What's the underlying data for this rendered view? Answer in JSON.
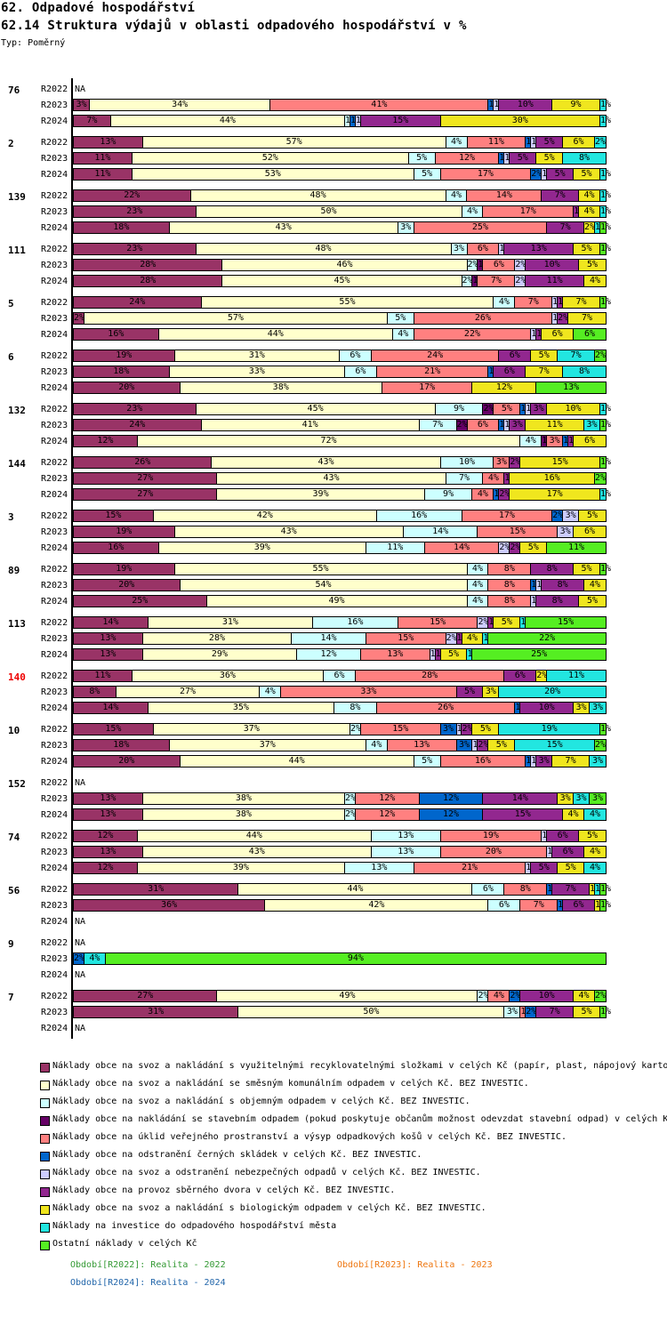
{
  "header": {
    "title": "62. Odpadové hospodářství",
    "subtitle": "62.14 Struktura výdajů v oblasti odpadového hospodářství v %",
    "type_label": "Typ: Poměrný"
  },
  "chart_data": {
    "type": "bar",
    "orientation": "horizontal-stacked-100",
    "title": "62.14 Struktura výdajů v oblasti odpadového hospodářství v %",
    "xlim": [
      0,
      100
    ],
    "series_names": [
      "Náklady obce na svoz a nakládání s využitelnými recyklovatelnými složkami v celých Kč (papír, plast, nápojový karto",
      "Náklady obce na svoz a nakládání se směsným komunálním odpadem v celých Kč.  BEZ INVESTIC.",
      "Náklady obce na svoz a nakládání s objemným odpadem v celých Kč.  BEZ INVESTIC.",
      "Náklady obce na nakládání se stavebním odpadem (pokud poskytuje občanům možnost odevzdat stavební odpad) v celých K",
      "Náklady obce na úklid veřejného prostranství a výsyp odpadkových košů v celých Kč.  BEZ INVESTIC.",
      "Náklady obce na odstranění černých skládek v celých Kč.  BEZ INVESTIC.",
      "Náklady obce na svoz a odstranění nebezpečných odpadů v celých Kč.  BEZ INVESTIC.",
      "Náklady obce na provoz sběrného dvora v celých Kč.  BEZ INVESTIC.",
      "Náklady obce na svoz a nakládání s biologickým odpadem v celých Kč.  BEZ INVESTIC.",
      "Náklady na investice do odpadového hospodářství města",
      "Ostatní náklady v celých Kč"
    ],
    "series_colors": [
      "#993366",
      "#ffffcc",
      "#ccffff",
      "#660066",
      "#ff8080",
      "#0066cc",
      "#ccccff",
      "#92278f",
      "#f0e61e",
      "#22e6e0",
      "#55ee22"
    ],
    "groups": [
      {
        "id": "76",
        "highlight": false,
        "rows": [
          {
            "period": "R2022",
            "values": null
          },
          {
            "period": "R2023",
            "values": [
              3,
              34,
              0,
              0,
              41,
              1,
              1,
              10,
              9,
              1,
              0
            ]
          },
          {
            "period": "R2024",
            "values": [
              7,
              44,
              1,
              0,
              0,
              1,
              1,
              15,
              30,
              1,
              0
            ]
          }
        ]
      },
      {
        "id": "2",
        "highlight": false,
        "rows": [
          {
            "period": "R2022",
            "values": [
              13,
              57,
              4,
              0,
              11,
              1,
              1,
              5,
              6,
              2,
              0
            ]
          },
          {
            "period": "R2023",
            "values": [
              11,
              52,
              5,
              0,
              12,
              1,
              1,
              5,
              5,
              8,
              0
            ]
          },
          {
            "period": "R2024",
            "values": [
              11,
              53,
              5,
              0,
              17,
              2,
              1,
              5,
              5,
              1,
              0
            ]
          }
        ]
      },
      {
        "id": "139",
        "highlight": false,
        "rows": [
          {
            "period": "R2022",
            "values": [
              22,
              48,
              4,
              0,
              14,
              0,
              0,
              7,
              4,
              1,
              0
            ]
          },
          {
            "period": "R2023",
            "values": [
              23,
              50,
              4,
              0,
              17,
              0,
              0,
              1,
              4,
              1,
              0
            ]
          },
          {
            "period": "R2024",
            "values": [
              18,
              43,
              3,
              0,
              25,
              0,
              0,
              7,
              2,
              1,
              1
            ]
          }
        ]
      },
      {
        "id": "111",
        "highlight": false,
        "rows": [
          {
            "period": "R2022",
            "values": [
              23,
              48,
              3,
              0,
              6,
              0,
              1,
              13,
              5,
              0,
              1
            ]
          },
          {
            "period": "R2023",
            "values": [
              28,
              46,
              2,
              1,
              6,
              0,
              2,
              10,
              5,
              0,
              0
            ]
          },
          {
            "period": "R2024",
            "values": [
              28,
              45,
              2,
              1,
              7,
              0,
              2,
              11,
              4,
              0,
              0
            ]
          }
        ]
      },
      {
        "id": "5",
        "highlight": false,
        "rows": [
          {
            "period": "R2022",
            "values": [
              24,
              55,
              4,
              0,
              7,
              0,
              1,
              1,
              7,
              0,
              1
            ]
          },
          {
            "period": "R2023",
            "values": [
              2,
              57,
              5,
              0,
              26,
              0,
              1,
              2,
              7,
              0,
              0
            ]
          },
          {
            "period": "R2024",
            "values": [
              16,
              44,
              4,
              0,
              22,
              0,
              1,
              1,
              6,
              0,
              6
            ]
          }
        ]
      },
      {
        "id": "6",
        "highlight": false,
        "rows": [
          {
            "period": "R2022",
            "values": [
              19,
              31,
              6,
              0,
              24,
              0,
              0,
              6,
              5,
              7,
              2
            ]
          },
          {
            "period": "R2023",
            "values": [
              18,
              33,
              6,
              0,
              21,
              1,
              0,
              6,
              7,
              8,
              0
            ]
          },
          {
            "period": "R2024",
            "values": [
              20,
              38,
              0,
              0,
              17,
              0,
              0,
              0,
              12,
              0,
              13
            ]
          }
        ]
      },
      {
        "id": "132",
        "highlight": false,
        "rows": [
          {
            "period": "R2022",
            "values": [
              23,
              45,
              9,
              2,
              5,
              1,
              1,
              3,
              10,
              1,
              0
            ]
          },
          {
            "period": "R2023",
            "values": [
              24,
              41,
              7,
              2,
              6,
              1,
              1,
              3,
              11,
              3,
              1
            ]
          },
          {
            "period": "R2024",
            "values": [
              12,
              72,
              4,
              1,
              3,
              1,
              0,
              1,
              6,
              0,
              0
            ]
          }
        ]
      },
      {
        "id": "144",
        "highlight": false,
        "rows": [
          {
            "period": "R2022",
            "values": [
              26,
              43,
              10,
              0,
              3,
              0,
              0,
              2,
              15,
              0,
              1
            ]
          },
          {
            "period": "R2023",
            "values": [
              27,
              43,
              7,
              0,
              4,
              0,
              0,
              1,
              16,
              0,
              2
            ]
          },
          {
            "period": "R2024",
            "values": [
              27,
              39,
              9,
              0,
              4,
              1,
              0,
              2,
              17,
              1,
              0
            ]
          }
        ]
      },
      {
        "id": "3",
        "highlight": false,
        "rows": [
          {
            "period": "R2022",
            "values": [
              15,
              42,
              16,
              0,
              17,
              2,
              3,
              0,
              5,
              0,
              0
            ]
          },
          {
            "period": "R2023",
            "values": [
              19,
              43,
              14,
              0,
              15,
              0,
              3,
              0,
              6,
              0,
              0
            ]
          },
          {
            "period": "R2024",
            "values": [
              16,
              39,
              11,
              0,
              14,
              0,
              2,
              2,
              5,
              0,
              11
            ]
          }
        ]
      },
      {
        "id": "89",
        "highlight": false,
        "rows": [
          {
            "period": "R2022",
            "values": [
              19,
              55,
              4,
              0,
              8,
              0,
              0,
              8,
              5,
              0,
              1
            ]
          },
          {
            "period": "R2023",
            "values": [
              20,
              54,
              4,
              0,
              8,
              1,
              1,
              8,
              4,
              0,
              0
            ]
          },
          {
            "period": "R2024",
            "values": [
              25,
              49,
              4,
              0,
              8,
              0,
              1,
              8,
              5,
              0,
              0
            ]
          }
        ]
      },
      {
        "id": "113",
        "highlight": false,
        "rows": [
          {
            "period": "R2022",
            "values": [
              14,
              31,
              16,
              0,
              15,
              0,
              2,
              1,
              5,
              1,
              15
            ]
          },
          {
            "period": "R2023",
            "values": [
              13,
              28,
              14,
              0,
              15,
              0,
              2,
              1,
              4,
              1,
              22
            ]
          },
          {
            "period": "R2024",
            "values": [
              13,
              29,
              12,
              0,
              13,
              0,
              1,
              1,
              5,
              1,
              25
            ]
          }
        ]
      },
      {
        "id": "140",
        "highlight": true,
        "rows": [
          {
            "period": "R2022",
            "values": [
              11,
              36,
              6,
              0,
              28,
              0,
              0,
              6,
              2,
              11,
              0
            ]
          },
          {
            "period": "R2023",
            "values": [
              8,
              27,
              4,
              0,
              33,
              0,
              0,
              5,
              3,
              20,
              0
            ]
          },
          {
            "period": "R2024",
            "values": [
              14,
              35,
              8,
              0,
              26,
              1,
              0,
              10,
              3,
              3,
              0
            ]
          }
        ]
      },
      {
        "id": "10",
        "highlight": false,
        "rows": [
          {
            "period": "R2022",
            "values": [
              15,
              37,
              2,
              0,
              15,
              3,
              1,
              2,
              5,
              19,
              1
            ]
          },
          {
            "period": "R2023",
            "values": [
              18,
              37,
              4,
              0,
              13,
              3,
              1,
              2,
              5,
              15,
              2
            ]
          },
          {
            "period": "R2024",
            "values": [
              20,
              44,
              5,
              0,
              16,
              1,
              1,
              3,
              7,
              3,
              0
            ]
          }
        ]
      },
      {
        "id": "152",
        "highlight": false,
        "rows": [
          {
            "period": "R2022",
            "values": null
          },
          {
            "period": "R2023",
            "values": [
              13,
              38,
              2,
              0,
              12,
              12,
              0,
              14,
              3,
              3,
              3
            ]
          },
          {
            "period": "R2024",
            "values": [
              13,
              38,
              2,
              0,
              12,
              12,
              0,
              15,
              4,
              4,
              0
            ]
          }
        ]
      },
      {
        "id": "74",
        "highlight": false,
        "rows": [
          {
            "period": "R2022",
            "values": [
              12,
              44,
              13,
              0,
              19,
              0,
              1,
              6,
              5,
              0,
              0
            ]
          },
          {
            "period": "R2023",
            "values": [
              13,
              43,
              13,
              0,
              20,
              0,
              1,
              6,
              4,
              0,
              0
            ]
          },
          {
            "period": "R2024",
            "values": [
              12,
              39,
              13,
              0,
              21,
              0,
              1,
              5,
              5,
              4,
              0
            ]
          }
        ]
      },
      {
        "id": "56",
        "highlight": false,
        "rows": [
          {
            "period": "R2022",
            "values": [
              31,
              44,
              6,
              0,
              8,
              1,
              0,
              7,
              1,
              1,
              1
            ]
          },
          {
            "period": "R2023",
            "values": [
              36,
              42,
              6,
              0,
              7,
              1,
              0,
              6,
              1,
              0,
              1
            ]
          },
          {
            "period": "R2024",
            "values": null
          }
        ]
      },
      {
        "id": "9",
        "highlight": false,
        "rows": [
          {
            "period": "R2022",
            "values": null
          },
          {
            "period": "R2023",
            "values": [
              0,
              0,
              0,
              0,
              0,
              2,
              0,
              0,
              0,
              4,
              94
            ]
          },
          {
            "period": "R2024",
            "values": null
          }
        ]
      },
      {
        "id": "7",
        "highlight": false,
        "rows": [
          {
            "period": "R2022",
            "values": [
              27,
              49,
              2,
              0,
              4,
              2,
              0,
              10,
              4,
              0,
              2
            ]
          },
          {
            "period": "R2023",
            "values": [
              31,
              50,
              3,
              0,
              1,
              2,
              0,
              7,
              5,
              0,
              1
            ]
          },
          {
            "period": "R2024",
            "values": null
          }
        ]
      }
    ],
    "na_label": "NA",
    "label_suffix": "%"
  },
  "legend": {
    "items": [
      {
        "label": "Náklady obce na svoz a nakládání s využitelnými recyklovatelnými složkami v celých Kč (papír, plast, nápojový karto",
        "color": "#993366"
      },
      {
        "label": "Náklady obce na svoz a nakládání se směsným komunálním odpadem v celých Kč.  BEZ INVESTIC.",
        "color": "#ffffcc"
      },
      {
        "label": "Náklady obce na svoz a nakládání s objemným odpadem v celých Kč.  BEZ INVESTIC.",
        "color": "#ccffff"
      },
      {
        "label": "Náklady obce na nakládání se stavebním odpadem (pokud poskytuje občanům možnost odevzdat stavební odpad) v celých K",
        "color": "#660066"
      },
      {
        "label": "Náklady obce na úklid veřejného prostranství a výsyp odpadkových košů v celých Kč.  BEZ INVESTIC.",
        "color": "#ff8080"
      },
      {
        "label": "Náklady obce na odstranění černých skládek v celých Kč.  BEZ INVESTIC.",
        "color": "#0066cc"
      },
      {
        "label": "Náklady obce na svoz a odstranění nebezpečných odpadů v celých Kč.  BEZ INVESTIC.",
        "color": "#ccccff"
      },
      {
        "label": "Náklady obce na provoz sběrného dvora v celých Kč.  BEZ INVESTIC.",
        "color": "#92278f"
      },
      {
        "label": "Náklady obce na svoz a nakládání s biologickým odpadem v celých Kč.  BEZ INVESTIC.",
        "color": "#f0e61e"
      },
      {
        "label": "Náklady na investice do odpadového hospodářství města",
        "color": "#22e6e0"
      },
      {
        "label": "Ostatní náklady v celých Kč",
        "color": "#55ee22"
      }
    ],
    "periods": [
      {
        "label": "Období[R2022]: Realita - 2022",
        "color": "#339933"
      },
      {
        "label": "Období[R2023]: Realita - 2023",
        "color": "#ee7711"
      },
      {
        "label": "Období[R2024]: Realita - 2024",
        "color": "#2266aa"
      }
    ]
  }
}
